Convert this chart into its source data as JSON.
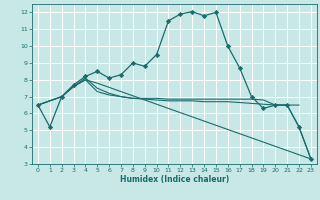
{
  "xlabel": "Humidex (Indice chaleur)",
  "bg_color": "#c8e8e8",
  "grid_color": "#ffffff",
  "line_color": "#1a6b6b",
  "xlim": [
    -0.5,
    23.5
  ],
  "ylim": [
    3,
    12.5
  ],
  "yticks": [
    3,
    4,
    5,
    6,
    7,
    8,
    9,
    10,
    11,
    12
  ],
  "xticks": [
    0,
    1,
    2,
    3,
    4,
    5,
    6,
    7,
    8,
    9,
    10,
    11,
    12,
    13,
    14,
    15,
    16,
    17,
    18,
    19,
    20,
    21,
    22,
    23
  ],
  "s1_x": [
    0,
    1,
    2,
    3,
    4,
    5,
    6,
    7,
    8,
    9,
    10,
    11,
    12,
    13,
    14,
    15,
    16,
    17,
    18,
    19,
    20,
    21,
    22,
    23
  ],
  "s1_y": [
    6.5,
    5.2,
    7.0,
    7.7,
    8.2,
    8.5,
    8.1,
    8.3,
    9.0,
    8.8,
    9.5,
    11.5,
    11.9,
    12.05,
    11.8,
    12.0,
    10.0,
    8.7,
    7.0,
    6.3,
    6.5,
    6.5,
    5.2,
    3.3
  ],
  "s2_x": [
    0,
    2,
    3,
    4,
    5,
    6,
    7,
    8,
    9,
    10,
    11,
    12,
    13,
    14,
    15,
    16,
    17,
    18,
    19,
    20,
    21,
    22
  ],
  "s2_y": [
    6.5,
    7.0,
    7.6,
    8.1,
    7.5,
    7.2,
    7.0,
    6.9,
    6.9,
    6.9,
    6.85,
    6.85,
    6.85,
    6.85,
    6.85,
    6.85,
    6.85,
    6.85,
    6.8,
    6.5,
    6.5,
    6.5
  ],
  "s3_x": [
    0,
    2,
    3,
    4,
    5,
    6,
    7,
    8,
    9,
    10,
    11,
    12,
    13,
    14,
    15,
    16,
    17,
    18,
    19,
    20,
    21,
    22,
    23
  ],
  "s3_y": [
    6.5,
    7.0,
    7.6,
    8.0,
    7.3,
    7.1,
    7.0,
    6.9,
    6.85,
    6.8,
    6.75,
    6.75,
    6.75,
    6.7,
    6.7,
    6.7,
    6.65,
    6.6,
    6.55,
    6.5,
    6.5,
    5.2,
    3.3
  ],
  "s4_x": [
    0,
    2,
    3,
    4,
    5,
    23
  ],
  "s4_y": [
    6.5,
    7.0,
    7.6,
    8.0,
    7.8,
    3.3
  ]
}
